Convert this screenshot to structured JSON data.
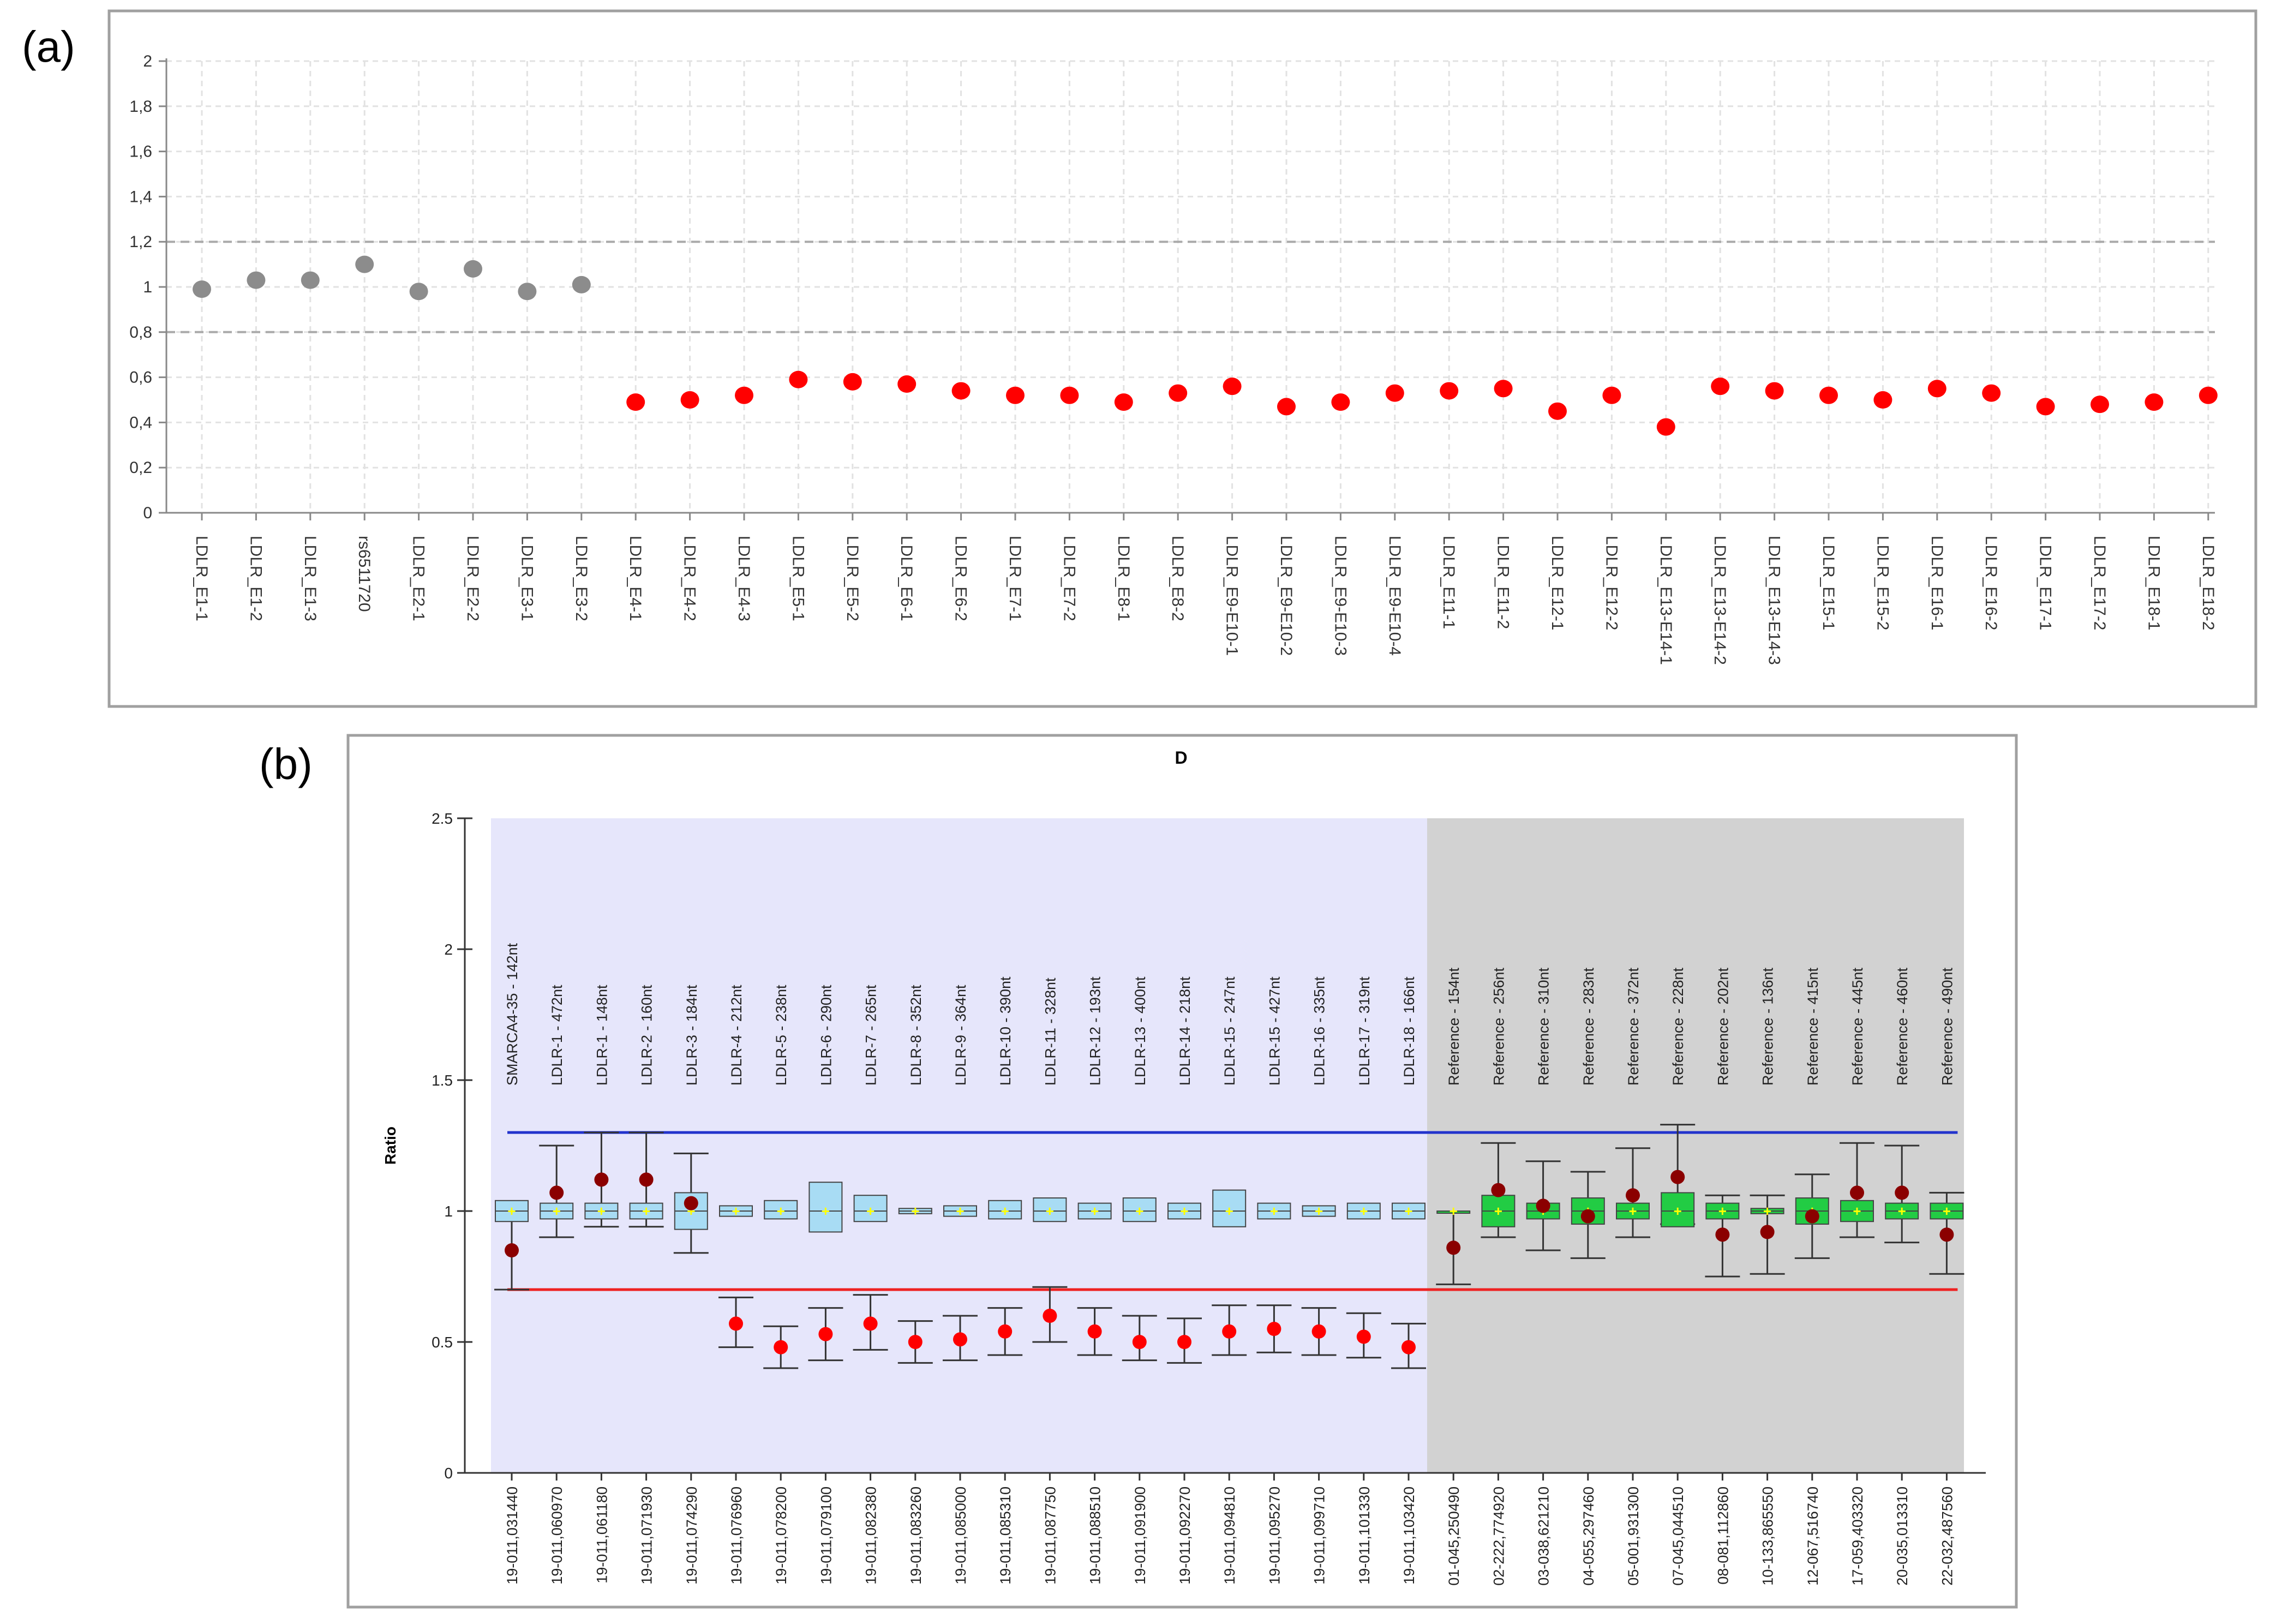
{
  "panel_labels": {
    "a": "(a)",
    "b": "(b)"
  },
  "chart_data": [
    {
      "type": "scatter",
      "title": "",
      "xlabel": "",
      "ylabel": "",
      "ylim": [
        0,
        2
      ],
      "y_ticks": [
        "0",
        "0,2",
        "0,4",
        "0,6",
        "0,8",
        "1",
        "1,2",
        "1,4",
        "1,6",
        "1,8",
        "2"
      ],
      "grid": true,
      "threshold_lines": [
        0.8,
        1.2
      ],
      "colors": {
        "normal": "#8c8c8c",
        "deleted": "#ff0000",
        "threshold": "#aaaaaa"
      },
      "categories": [
        "LDLR_E1-1",
        "LDLR_E1-2",
        "LDLR_E1-3",
        "rs6511720",
        "LDLR_E2-1",
        "LDLR_E2-2",
        "LDLR_E3-1",
        "LDLR_E3-2",
        "LDLR_E4-1",
        "LDLR_E4-2",
        "LDLR_E4-3",
        "LDLR_E5-1",
        "LDLR_E5-2",
        "LDLR_E6-1",
        "LDLR_E6-2",
        "LDLR_E7-1",
        "LDLR_E7-2",
        "LDLR_E8-1",
        "LDLR_E8-2",
        "LDLR_E9-E10-1",
        "LDLR_E9-E10-2",
        "LDLR_E9-E10-3",
        "LDLR_E9-E10-4",
        "LDLR_E11-1",
        "LDLR_E11-2",
        "LDLR_E12-1",
        "LDLR_E12-2",
        "LDLR_E13-E14-1",
        "LDLR_E13-E14-2",
        "LDLR_E13-E14-3",
        "LDLR_E15-1",
        "LDLR_E15-2",
        "LDLR_E16-1",
        "LDLR_E16-2",
        "LDLR_E17-1",
        "LDLR_E17-2",
        "LDLR_E18-1",
        "LDLR_E18-2"
      ],
      "values": [
        0.99,
        1.03,
        1.03,
        1.1,
        0.98,
        1.08,
        0.98,
        1.01,
        0.49,
        0.5,
        0.52,
        0.59,
        0.58,
        0.57,
        0.54,
        0.52,
        0.52,
        0.49,
        0.53,
        0.56,
        0.47,
        0.49,
        0.53,
        0.54,
        0.55,
        0.45,
        0.52,
        0.38,
        0.56,
        0.54,
        0.52,
        0.5,
        0.55,
        0.53,
        0.47,
        0.48,
        0.49,
        0.52
      ]
    },
    {
      "type": "box",
      "title": "D",
      "xlabel": "",
      "ylabel": "Ratio",
      "ylim": [
        0,
        2.5
      ],
      "y_ticks": [
        "0",
        "0.5",
        "1",
        "1.5",
        "2",
        "2.5"
      ],
      "upper_threshold": 1.3,
      "lower_threshold": 0.7,
      "colors": {
        "test_region": "#e6e6fb",
        "reference_region": "#d2d2d2",
        "test_box": "#a8dcf4",
        "reference_box": "#22cc44",
        "upper_line": "#2233cc",
        "lower_line": "#ee2222",
        "normal_point": "#8b0000",
        "deleted_point": "#ff0000",
        "mean_marker": "#ffff00"
      },
      "probes": [
        "SMARCA4-35 - 142nt",
        "LDLR-1 - 472nt",
        "LDLR-1 - 148nt",
        "LDLR-2 - 160nt",
        "LDLR-3 - 184nt",
        "LDLR-4 - 212nt",
        "LDLR-5 - 238nt",
        "LDLR-6 - 290nt",
        "LDLR-7 - 265nt",
        "LDLR-8 - 352nt",
        "LDLR-9 - 364nt",
        "LDLR-10 - 390nt",
        "LDLR-11 - 328nt",
        "LDLR-12 - 193nt",
        "LDLR-13 - 400nt",
        "LDLR-14 - 218nt",
        "LDLR-15 - 247nt",
        "LDLR-15 - 427nt",
        "LDLR-16 - 335nt",
        "LDLR-17 - 319nt",
        "LDLR-18 - 166nt",
        "Reference - 154nt",
        "Reference - 256nt",
        "Reference - 310nt",
        "Reference - 283nt",
        "Reference - 372nt",
        "Reference - 228nt",
        "Reference - 202nt",
        "Reference - 136nt",
        "Reference - 415nt",
        "Reference - 445nt",
        "Reference - 460nt",
        "Reference - 490nt"
      ],
      "positions": [
        "19-011,031440",
        "19-011,060970",
        "19-011,061180",
        "19-011,071930",
        "19-011,074290",
        "19-011,076960",
        "19-011,078200",
        "19-011,079100",
        "19-011,082380",
        "19-011,083260",
        "19-011,085000",
        "19-011,085310",
        "19-011,087750",
        "19-011,088510",
        "19-011,091900",
        "19-011,092270",
        "19-011,094810",
        "19-011,095270",
        "19-011,099710",
        "19-011,101330",
        "19-011,103420",
        "01-045,250490",
        "02-222,774920",
        "03-038,621210",
        "04-055,297460",
        "05-001,931300",
        "07-045,044510",
        "08-081,112860",
        "10-133,865550",
        "12-067,516740",
        "17-059,403320",
        "20-035,013310",
        "22-032,487560"
      ],
      "box_low": [
        0.96,
        0.97,
        0.97,
        0.97,
        0.93,
        0.98,
        0.97,
        0.92,
        0.96,
        0.99,
        0.98,
        0.97,
        0.96,
        0.97,
        0.96,
        0.97,
        0.94,
        0.97,
        0.98,
        0.97,
        0.97,
        1.0,
        0.94,
        0.97,
        0.95,
        0.97,
        0.94,
        0.97,
        0.99,
        0.95,
        0.96,
        0.97,
        0.97
      ],
      "box_high": [
        1.04,
        1.03,
        1.03,
        1.03,
        1.07,
        1.02,
        1.04,
        1.11,
        1.06,
        1.01,
        1.02,
        1.04,
        1.05,
        1.03,
        1.05,
        1.03,
        1.08,
        1.03,
        1.02,
        1.03,
        1.03,
        1.0,
        1.06,
        1.03,
        1.05,
        1.03,
        1.07,
        1.03,
        1.01,
        1.05,
        1.04,
        1.03,
        1.03
      ],
      "err_low": [
        0.7,
        0.9,
        0.94,
        0.94,
        0.84,
        0.48,
        0.4,
        0.43,
        0.47,
        0.42,
        0.43,
        0.45,
        0.5,
        0.45,
        0.43,
        0.42,
        0.45,
        0.46,
        0.45,
        0.44,
        0.4,
        0.72,
        0.9,
        0.85,
        0.82,
        0.9,
        0.95,
        0.75,
        0.76,
        0.82,
        0.9,
        0.88,
        0.76
      ],
      "err_high": [
        null,
        1.25,
        1.3,
        1.3,
        1.22,
        0.67,
        0.56,
        0.63,
        0.68,
        0.58,
        0.6,
        0.63,
        0.71,
        0.63,
        0.6,
        0.59,
        0.64,
        0.64,
        0.63,
        0.61,
        0.57,
        null,
        1.26,
        1.19,
        1.15,
        1.24,
        1.33,
        1.06,
        1.06,
        1.14,
        1.26,
        1.25,
        1.07
      ],
      "sample": [
        0.85,
        1.07,
        1.12,
        1.12,
        1.03,
        0.57,
        0.48,
        0.53,
        0.57,
        0.5,
        0.51,
        0.54,
        0.6,
        0.54,
        0.5,
        0.5,
        0.54,
        0.55,
        0.54,
        0.52,
        0.48,
        0.86,
        1.08,
        1.02,
        0.98,
        1.06,
        1.13,
        0.91,
        0.92,
        0.98,
        1.07,
        1.07,
        0.91
      ],
      "reference_start_index": 21
    }
  ]
}
